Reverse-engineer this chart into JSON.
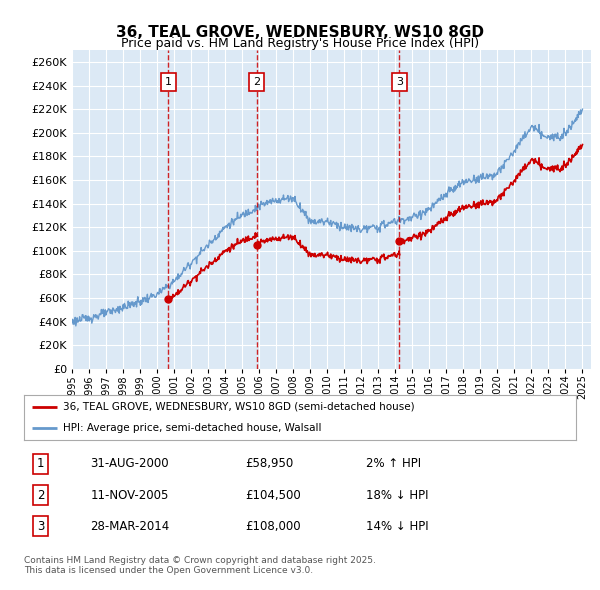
{
  "title": "36, TEAL GROVE, WEDNESBURY, WS10 8GD",
  "subtitle": "Price paid vs. HM Land Registry's House Price Index (HPI)",
  "plot_bg_color": "#dce9f5",
  "ylim": [
    0,
    270000
  ],
  "yticks": [
    0,
    20000,
    40000,
    60000,
    80000,
    100000,
    120000,
    140000,
    160000,
    180000,
    200000,
    220000,
    240000,
    260000
  ],
  "sale_dates_num": [
    2000.66,
    2005.86,
    2014.23
  ],
  "sale_prices": [
    58950,
    104500,
    108000
  ],
  "sale_labels": [
    "1",
    "2",
    "3"
  ],
  "vline_color": "#cc0000",
  "red_line_color": "#cc0000",
  "blue_line_color": "#6699cc",
  "legend_entries": [
    "36, TEAL GROVE, WEDNESBURY, WS10 8GD (semi-detached house)",
    "HPI: Average price, semi-detached house, Walsall"
  ],
  "table_rows": [
    [
      "1",
      "31-AUG-2000",
      "£58,950",
      "2% ↑ HPI"
    ],
    [
      "2",
      "11-NOV-2005",
      "£104,500",
      "18% ↓ HPI"
    ],
    [
      "3",
      "28-MAR-2014",
      "£108,000",
      "14% ↓ HPI"
    ]
  ],
  "footer": "Contains HM Land Registry data © Crown copyright and database right 2025.\nThis data is licensed under the Open Government Licence v3.0.",
  "xmin": 1995.0,
  "xmax": 2025.5,
  "hpi_knots_x": [
    1995,
    1996,
    1997,
    1998,
    1999,
    2000,
    2001,
    2002,
    2003,
    2004,
    2005,
    2006,
    2007,
    2008,
    2009,
    2010,
    2011,
    2012,
    2013,
    2014,
    2015,
    2016,
    2017,
    2018,
    2019,
    2020,
    2021,
    2022,
    2023,
    2024,
    2025
  ],
  "hpi_knots_y": [
    40000,
    43000,
    47000,
    52000,
    57000,
    63000,
    74000,
    90000,
    105000,
    120000,
    130000,
    138000,
    143000,
    145000,
    125000,
    125000,
    120000,
    118000,
    120000,
    125000,
    128000,
    135000,
    148000,
    158000,
    162000,
    165000,
    185000,
    205000,
    195000,
    200000,
    220000
  ]
}
